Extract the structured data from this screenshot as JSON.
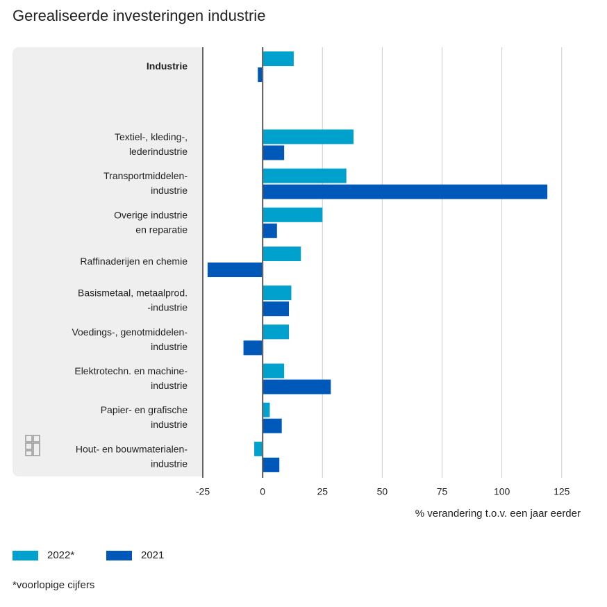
{
  "chart_data": {
    "type": "bar",
    "orientation": "horizontal",
    "title": "Gerealiseerde investeringen industrie",
    "x_label": "% verandering t.o.v. een jaar eerder",
    "footnote": "*voorlopige cijfers",
    "categories": [
      "Industrie",
      null,
      "Textiel-, kleding-,\nlederindustrie",
      "Transportmiddelen-\nindustrie",
      "Overige industrie\nen reparatie",
      "Raffinaderijen en chemie",
      "Basismetaal, metaalprod.\n-industrie",
      "Voedings-, genotmiddelen-\nindustrie",
      "Elektrotechn. en machine-\nindustrie",
      "Papier- en grafische\nindustrie",
      "Hout- en bouwmaterialen-\nindustrie"
    ],
    "series": [
      {
        "name": "2022*",
        "color": "#00a1cd",
        "values": [
          13,
          null,
          38,
          35,
          25,
          16,
          12,
          11,
          9,
          3,
          -3.5
        ]
      },
      {
        "name": "2021",
        "color": "#0058b8",
        "values": [
          -2,
          null,
          9,
          119,
          6,
          -23,
          11,
          -8,
          28.5,
          8,
          7
        ]
      }
    ],
    "xlim": [
      -25,
      130
    ],
    "xticks": [
      -25,
      0,
      25,
      50,
      75,
      100,
      125
    ],
    "grid": true
  }
}
